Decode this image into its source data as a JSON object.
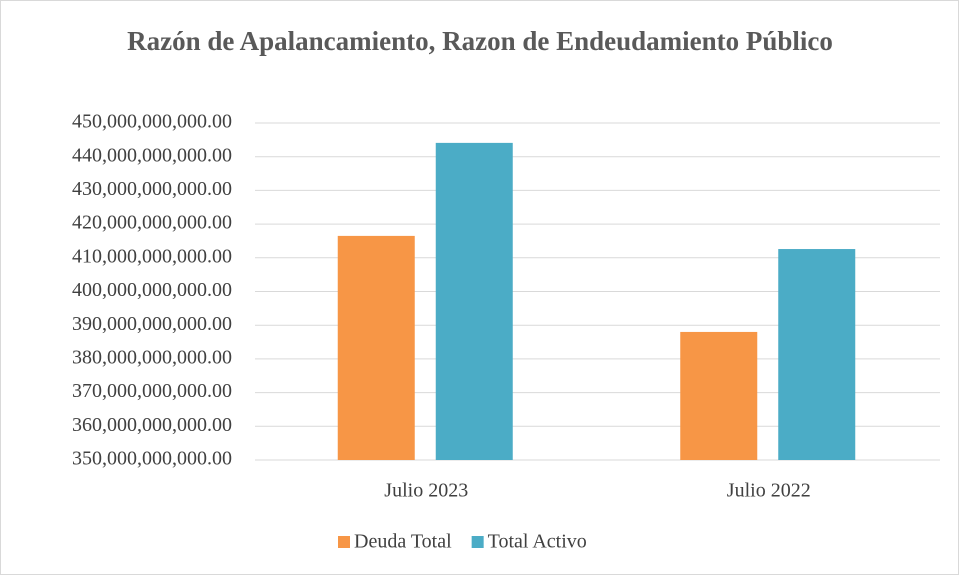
{
  "chart_data": {
    "type": "bar",
    "title": "Razón de Apalancamiento, Razon de Endeudamiento Público",
    "categories": [
      "Julio 2023",
      "Julio 2022"
    ],
    "series": [
      {
        "name": "Deuda Total",
        "color": "#f79646",
        "values": [
          416500000000,
          388000000000
        ]
      },
      {
        "name": "Total Activo",
        "color": "#4bacc6",
        "values": [
          444100000000,
          412600000000
        ]
      }
    ],
    "ylim": [
      350000000000,
      450000000000
    ],
    "yticks": [
      {
        "value": 350000000000,
        "label": "350,000,000,000.00"
      },
      {
        "value": 360000000000,
        "label": "360,000,000,000.00"
      },
      {
        "value": 370000000000,
        "label": "370,000,000,000.00"
      },
      {
        "value": 380000000000,
        "label": "380,000,000,000.00"
      },
      {
        "value": 390000000000,
        "label": "390,000,000,000.00"
      },
      {
        "value": 400000000000,
        "label": "400,000,000,000.00"
      },
      {
        "value": 410000000000,
        "label": "410,000,000,000.00"
      },
      {
        "value": 420000000000,
        "label": "420,000,000,000.00"
      },
      {
        "value": 430000000000,
        "label": "430,000,000,000.00"
      },
      {
        "value": 440000000000,
        "label": "440,000,000,000.00"
      },
      {
        "value": 450000000000,
        "label": "450,000,000,000.00"
      }
    ],
    "grid": true,
    "legend": "bottom"
  }
}
